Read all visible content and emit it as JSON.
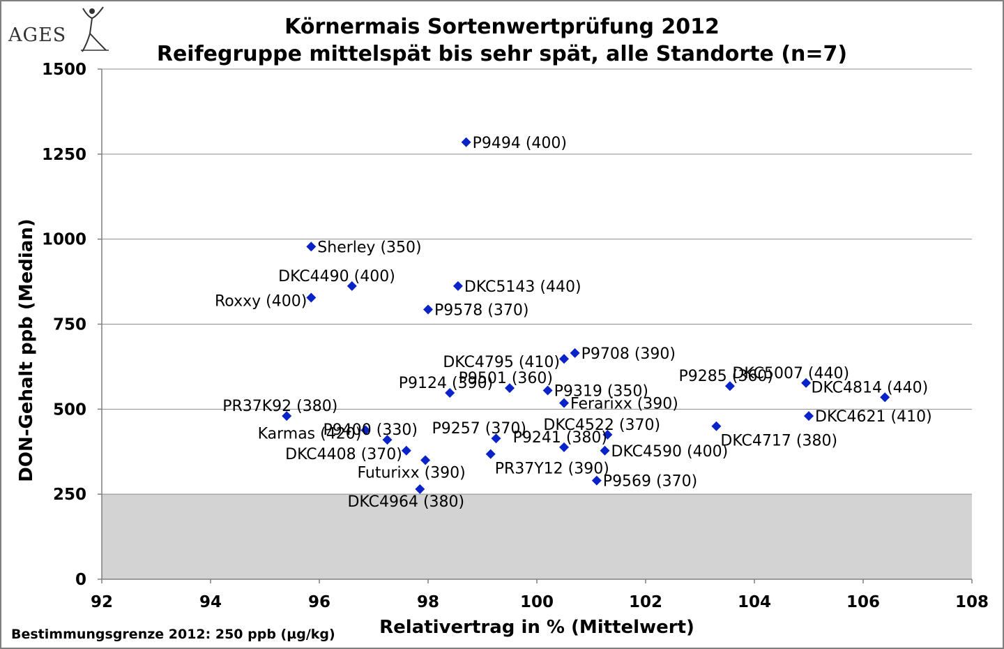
{
  "logo": {
    "text": "AGES"
  },
  "footnote": "Bestimmungsgrenze 2012: 250 ppb (µg/kg)",
  "colors": {
    "marker": "#0a23c8",
    "grid": "#8c8c8c",
    "limit_band": "#d3d3d3"
  },
  "chart_data": {
    "type": "scatter",
    "title": "Körnermais Sortenwertprüfung 2012",
    "subtitle": "Reifegruppe mittelspät bis sehr spät, alle Standorte (n=7)",
    "xlabel": "Relativertrag in % (Mittelwert)",
    "ylabel": "DON-Gehalt ppb (Median)",
    "xlim": [
      92,
      108
    ],
    "ylim": [
      0,
      1500
    ],
    "xticks": [
      92,
      94,
      96,
      98,
      100,
      102,
      104,
      106,
      108
    ],
    "yticks": [
      0,
      250,
      500,
      750,
      1000,
      1250,
      1500
    ],
    "grid": "horizontal",
    "shaded_band_y": [
      0,
      250
    ],
    "points": [
      {
        "label": "P9494 (400)",
        "x": 98.7,
        "y": 1285,
        "label_pos": "right"
      },
      {
        "label": "Sherley (350)",
        "x": 95.85,
        "y": 978,
        "label_pos": "right"
      },
      {
        "label": "DKC4490 (400)",
        "x": 96.6,
        "y": 862,
        "label_pos": "above-left"
      },
      {
        "label": "Roxxy (400)",
        "x": 95.85,
        "y": 828,
        "label_pos": "left"
      },
      {
        "label": "DKC5143 (440)",
        "x": 98.55,
        "y": 862,
        "label_pos": "right"
      },
      {
        "label": "P9578 (370)",
        "x": 98.0,
        "y": 793,
        "label_pos": "right"
      },
      {
        "label": "P9708 (390)",
        "x": 100.7,
        "y": 665,
        "label_pos": "right"
      },
      {
        "label": "DKC4795 (410)",
        "x": 100.5,
        "y": 648,
        "label_pos": "left"
      },
      {
        "label": "P9124 (390)",
        "x": 98.4,
        "y": 548,
        "label_pos": "above-left"
      },
      {
        "label": "P9501 (360)",
        "x": 99.5,
        "y": 562,
        "label_pos": "above-left"
      },
      {
        "label": "P9319 (350)",
        "x": 100.2,
        "y": 555,
        "label_pos": "right"
      },
      {
        "label": "Ferarixx (390)",
        "x": 100.5,
        "y": 518,
        "label_pos": "right"
      },
      {
        "label": "P9285 (360)",
        "x": 103.55,
        "y": 568,
        "label_pos": "above-left"
      },
      {
        "label": "DKC5007 (440)",
        "x": 104.95,
        "y": 577,
        "label_pos": "above-left"
      },
      {
        "label": "DKC4814 (440)",
        "x": 106.4,
        "y": 535,
        "label_pos": "above-left"
      },
      {
        "label": "PR37K92 (380)",
        "x": 95.4,
        "y": 480,
        "label_pos": "above-right"
      },
      {
        "label": "DKC4621 (410)",
        "x": 105.0,
        "y": 480,
        "label_pos": "right"
      },
      {
        "label": "Karmas (420)",
        "x": 96.85,
        "y": 438,
        "label_pos": "left"
      },
      {
        "label": "P9400 (330)",
        "x": 97.25,
        "y": 410,
        "label_pos": "above-right"
      },
      {
        "label": "P9257 (370)",
        "x": 99.25,
        "y": 414,
        "label_pos": "above-right"
      },
      {
        "label": "DKC4522 (370)",
        "x": 101.3,
        "y": 425,
        "label_pos": "above-right"
      },
      {
        "label": "DKC4717 (380)",
        "x": 103.3,
        "y": 450,
        "label_pos": "below-right"
      },
      {
        "label": "P9241 (380)",
        "x": 100.5,
        "y": 388,
        "label_pos": "above-left"
      },
      {
        "label": "DKC4408 (370)",
        "x": 97.6,
        "y": 378,
        "label_pos": "left"
      },
      {
        "label": "DKC4590 (400)",
        "x": 101.25,
        "y": 378,
        "label_pos": "right"
      },
      {
        "label": "Futurixx (390)",
        "x": 97.95,
        "y": 350,
        "label_pos": "below"
      },
      {
        "label": "PR37Y12 (390)",
        "x": 99.15,
        "y": 368,
        "label_pos": "below-right"
      },
      {
        "label": "P9569 (370)",
        "x": 101.1,
        "y": 290,
        "label_pos": "right"
      },
      {
        "label": "DKC4964 (380)",
        "x": 97.85,
        "y": 265,
        "label_pos": "below"
      }
    ]
  }
}
